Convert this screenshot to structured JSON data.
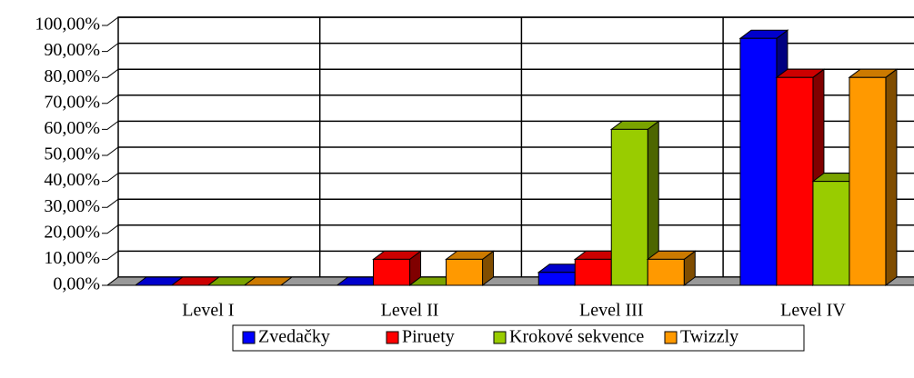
{
  "chart_data": {
    "type": "bar3d",
    "categories": [
      "Level I",
      "Level II",
      "Level III",
      "Level IV"
    ],
    "series": [
      {
        "name": "Zvedačky",
        "color": "#0000ff",
        "values": [
          0,
          0,
          5,
          95
        ]
      },
      {
        "name": "Piruety",
        "color": "#ff0000",
        "values": [
          0,
          10,
          10,
          80
        ]
      },
      {
        "name": "Krokové sekvence",
        "color": "#99cc00",
        "values": [
          0,
          0,
          60,
          40
        ]
      },
      {
        "name": "Twizzly",
        "color": "#ff9900",
        "values": [
          0,
          10,
          10,
          80
        ]
      }
    ],
    "ylim": [
      0,
      100
    ],
    "yticks": [
      {
        "value": 0,
        "label": "0,00%"
      },
      {
        "value": 10,
        "label": "10,00%"
      },
      {
        "value": 20,
        "label": "20,00%"
      },
      {
        "value": 30,
        "label": "30,00%"
      },
      {
        "value": 40,
        "label": "40,00%"
      },
      {
        "value": 50,
        "label": "50,00%"
      },
      {
        "value": 60,
        "label": "60,00%"
      },
      {
        "value": 70,
        "label": "70,00%"
      },
      {
        "value": 80,
        "label": "80,00%"
      },
      {
        "value": 90,
        "label": "90,00%"
      },
      {
        "value": 100,
        "label": "100,00%"
      }
    ],
    "grid": true,
    "legend": "bottom"
  }
}
